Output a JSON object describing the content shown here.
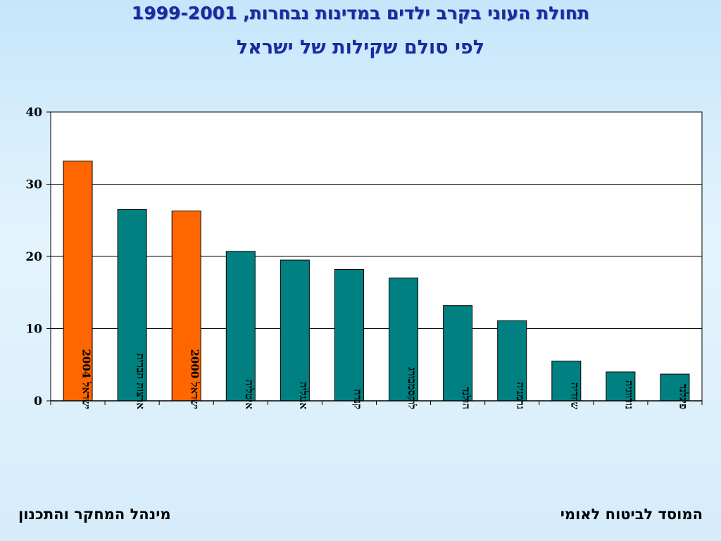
{
  "header": {
    "title": "תחולת העוני בקרב ילדים במדינות נבחרות, 1999-2001",
    "subtitle": "לפי סולם שקילות של ישראל"
  },
  "footer": {
    "right_text": "המוסד לביטוח לאומי",
    "left_text": "מינהל המחקר והתכנון"
  },
  "colors": {
    "highlight_bar": "#ff6600",
    "default_bar": "#008080",
    "gridline": "#000000",
    "plot_background": "#ffffff"
  },
  "chart_data": {
    "type": "bar",
    "title": "תחולת העוני בקרב ילדים במדינות נבחרות, 1999-2001",
    "subtitle": "לפי סולם שקילות של ישראל",
    "xlabel": "",
    "ylabel": "",
    "ylim": [
      0,
      40
    ],
    "yticks": [
      0,
      10,
      20,
      30,
      40
    ],
    "grid": true,
    "categories": [
      "ישראל 2004",
      "ארצות הברית",
      "ישראל 2000",
      "איטליה",
      "אנגליה",
      "קנדה",
      "לוקסמבורג",
      "הולנד",
      "גרמניה",
      "שוודיה",
      "נורווגיה",
      "פינלנד"
    ],
    "values": [
      33.2,
      26.5,
      26.3,
      20.7,
      19.5,
      18.2,
      17.0,
      13.2,
      11.1,
      5.5,
      4.0,
      3.7
    ],
    "highlighted": [
      true,
      false,
      true,
      false,
      false,
      false,
      false,
      false,
      false,
      false,
      false,
      false
    ]
  }
}
